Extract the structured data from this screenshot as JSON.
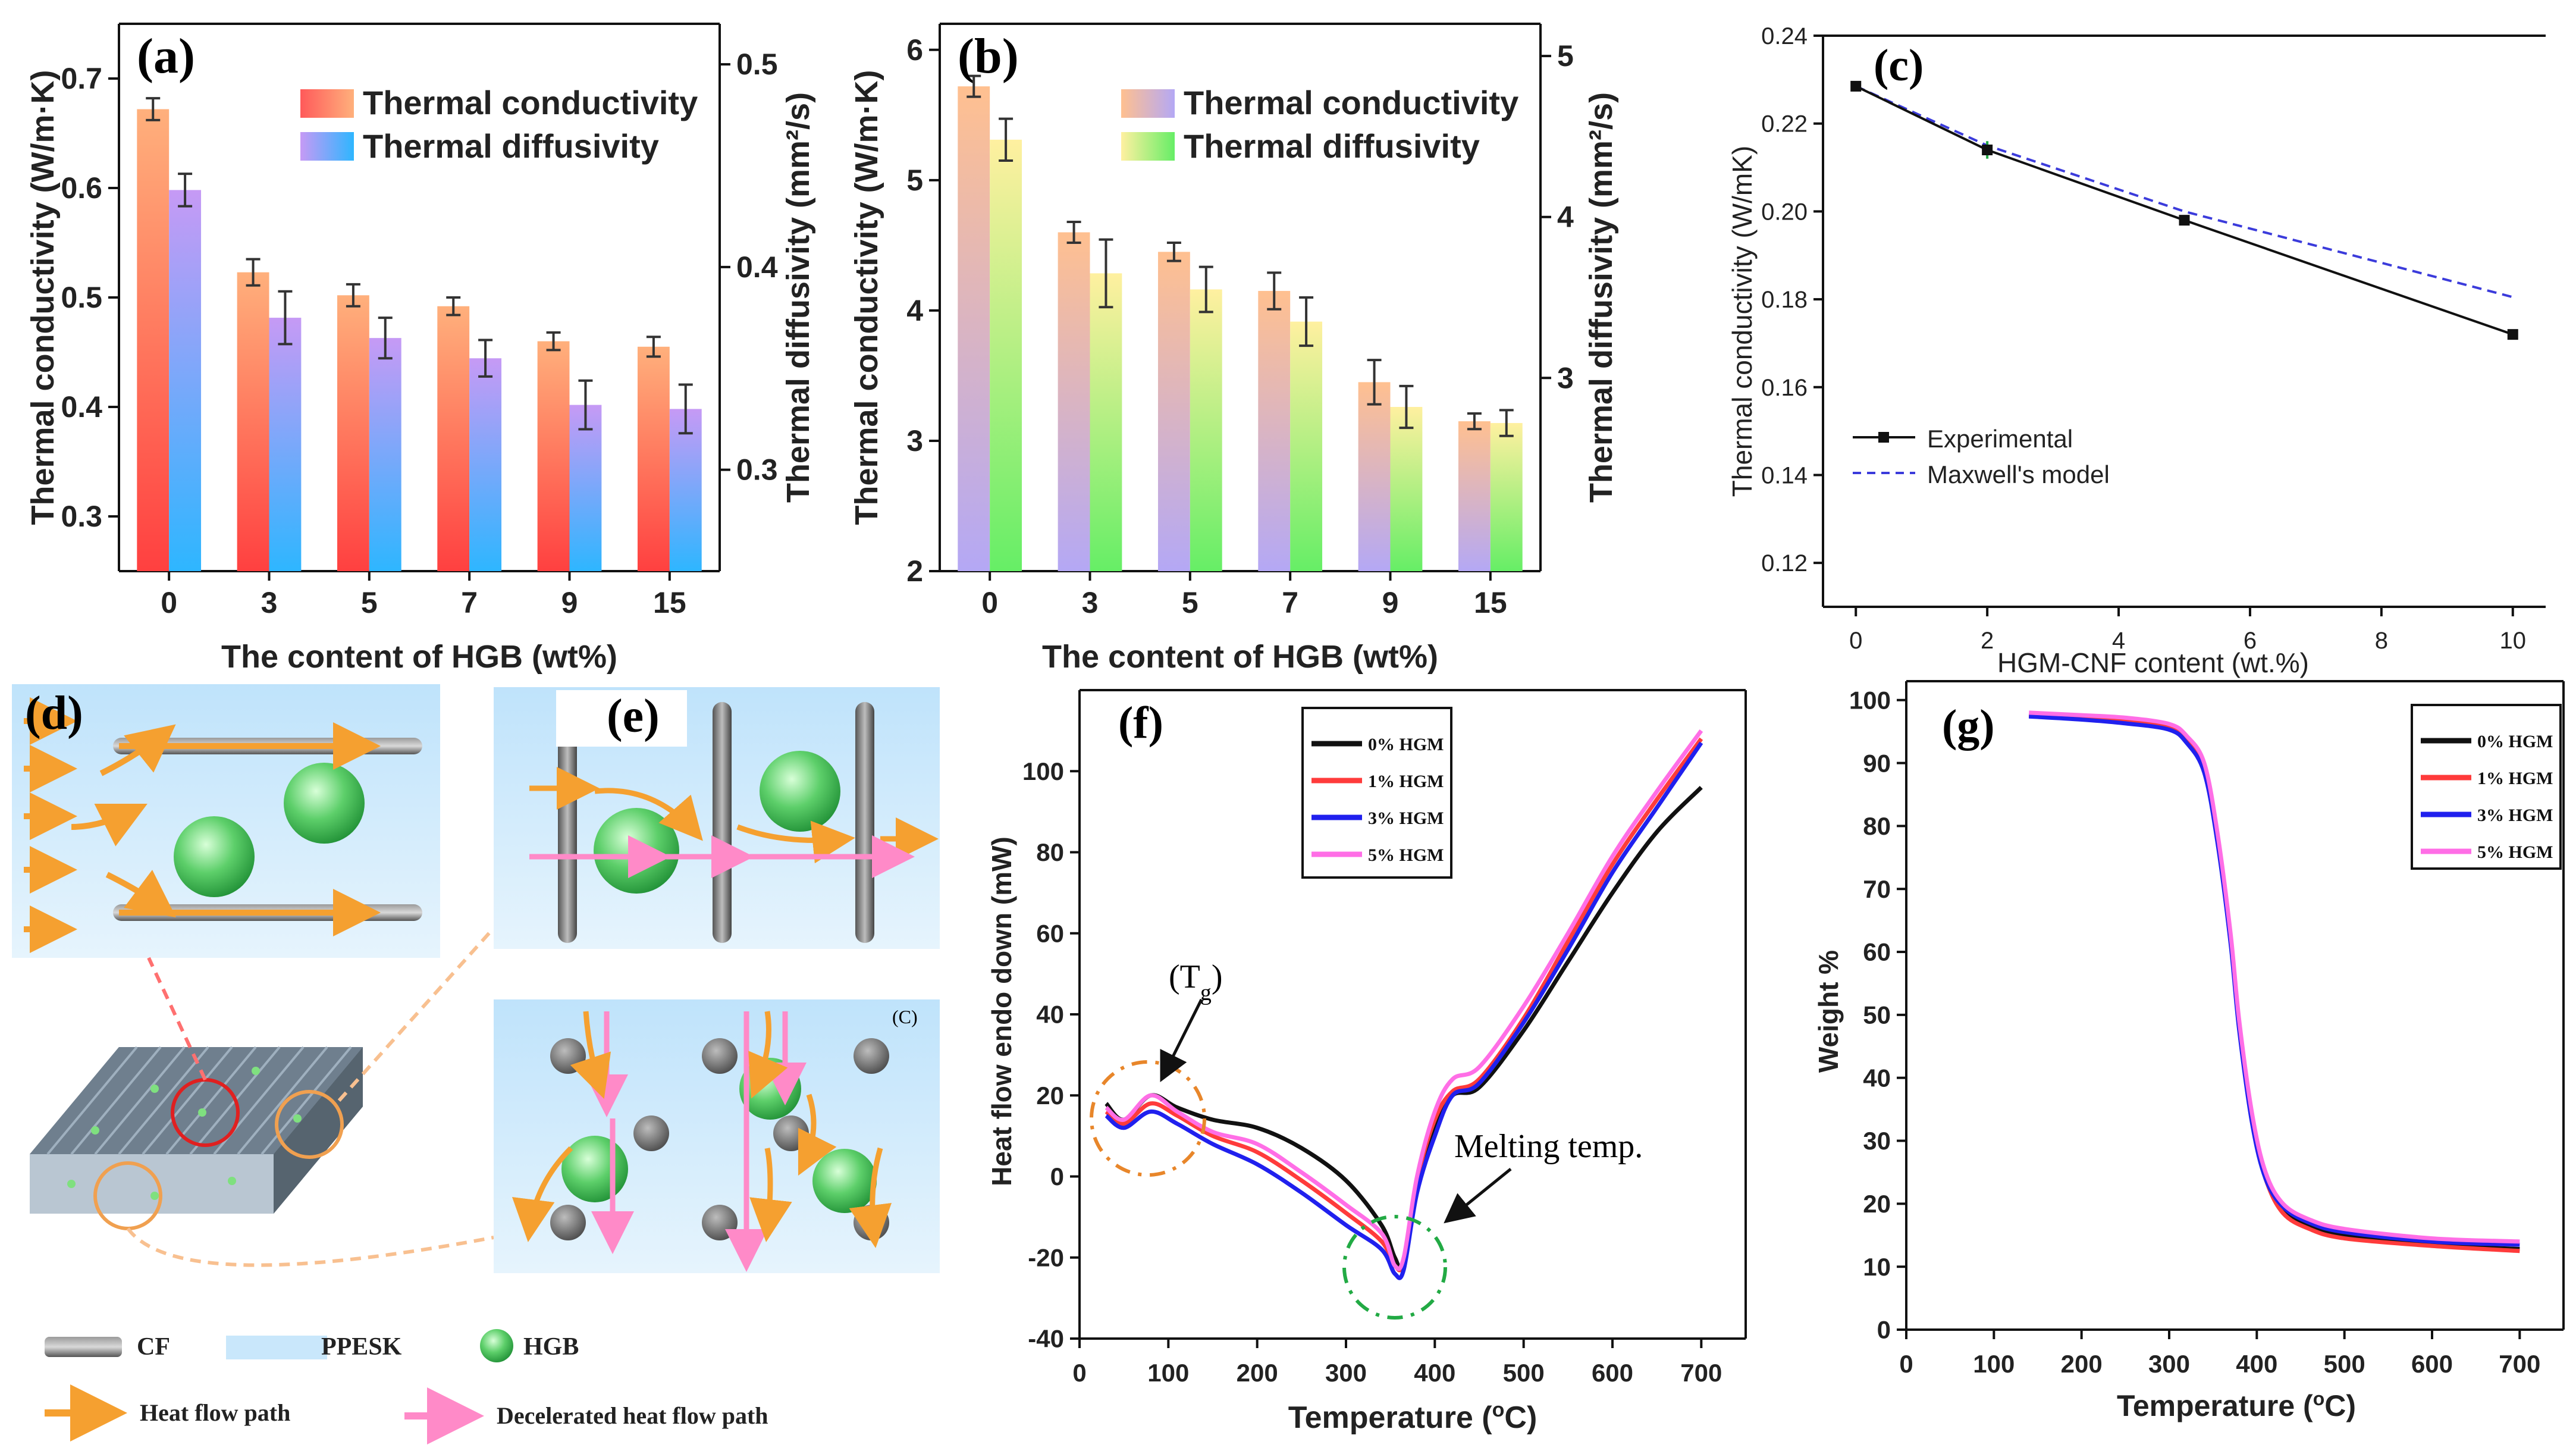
{
  "colors": {
    "red": "#ff3b3b",
    "orange": "#ffa07a",
    "blue": "#3aaeff",
    "violet": "#c49cf5",
    "green": "#7cf07c",
    "black": "#111111",
    "dashblue": "#3b3bdb",
    "pink": "#ff6ee6",
    "water": "#c9e7fb"
  },
  "legend_c": {
    "experimental": "Experimental",
    "maxwell": "Maxwell's model"
  },
  "legend_fg": [
    "0% HGM",
    "1% HGM",
    "3% HGM",
    "5% HGM"
  ],
  "annotations": {
    "tg": "(T",
    "tg_sub": "g",
    "tg_close": ")",
    "melt": "Melting temp."
  },
  "schematic": {
    "label_d": "(d)",
    "label_e": "(e)",
    "label_c_small": "(C)",
    "legend": {
      "cf": "CF",
      "ppesk": "PPESK",
      "hgb": "HGB",
      "heat": "Heat flow path",
      "decel": "Decelerated heat flow path"
    }
  },
  "chart_data": [
    {
      "panel": "(a)",
      "type": "bar",
      "categories": [
        "0",
        "3",
        "5",
        "7",
        "9",
        "15"
      ],
      "xlabel": "The content of HGB (wt%)",
      "ylabel": "Thermal conductivity (W/m·K)",
      "ylabel_right": "Thermal diffusivity (mm²/s)",
      "ylim": [
        0.25,
        0.75
      ],
      "yticks": [
        "0.3",
        "0.4",
        "0.5",
        "0.6",
        "0.7"
      ],
      "ylim_right": [
        0.25,
        0.52
      ],
      "yticks_right": [
        "0.3",
        "0.4",
        "0.5"
      ],
      "series": [
        {
          "name": "Thermal conductivity",
          "axis": "left",
          "values": [
            0.672,
            0.523,
            0.502,
            0.492,
            0.46,
            0.455
          ],
          "errors": [
            0.01,
            0.012,
            0.01,
            0.008,
            0.008,
            0.009
          ]
        },
        {
          "name": "Thermal diffusivity",
          "axis": "right",
          "values": [
            0.438,
            0.375,
            0.365,
            0.355,
            0.332,
            0.33
          ],
          "errors": [
            0.008,
            0.013,
            0.01,
            0.009,
            0.012,
            0.012
          ]
        }
      ]
    },
    {
      "panel": "(b)",
      "type": "bar",
      "categories": [
        "0",
        "3",
        "5",
        "7",
        "9",
        "15"
      ],
      "xlabel": "The content of HGB (wt%)",
      "ylabel": "Thermal conductivity (W/m·K)",
      "ylabel_right": "Thermal diffusivity (mm²/s)",
      "ylim": [
        2,
        6.2
      ],
      "yticks": [
        "2",
        "3",
        "4",
        "5",
        "6"
      ],
      "ylim_right": [
        1.8,
        5.2
      ],
      "yticks_right": [
        "3",
        "4",
        "5"
      ],
      "series": [
        {
          "name": "Thermal conductivity",
          "axis": "left",
          "values": [
            5.72,
            4.6,
            4.45,
            4.15,
            3.45,
            3.15
          ],
          "errors": [
            0.08,
            0.08,
            0.07,
            0.14,
            0.17,
            0.06
          ]
        },
        {
          "name": "Thermal diffusivity",
          "axis": "right",
          "values": [
            4.48,
            3.65,
            3.55,
            3.35,
            2.82,
            2.72
          ],
          "errors": [
            0.13,
            0.21,
            0.14,
            0.15,
            0.13,
            0.08
          ]
        }
      ]
    },
    {
      "panel": "(c)",
      "type": "line",
      "xlabel": "HGM-CNF content (wt.%)",
      "ylabel": "Thermal conductivity (W/mK)",
      "xlim": [
        -0.5,
        10.5
      ],
      "xticks": [
        "0",
        "2",
        "4",
        "6",
        "8",
        "10"
      ],
      "ylim": [
        0.11,
        0.24
      ],
      "yticks": [
        "0.12",
        "0.14",
        "0.16",
        "0.18",
        "0.20",
        "0.22",
        "0.24"
      ],
      "series": [
        {
          "name": "Experimental",
          "x": [
            0,
            2,
            5,
            10
          ],
          "y": [
            0.2285,
            0.214,
            0.198,
            0.172
          ],
          "errors": [
            0.001,
            0.002,
            0.001,
            0.001
          ]
        },
        {
          "name": "Maxwell's model",
          "x": [
            0,
            2,
            5,
            10
          ],
          "y": [
            0.2285,
            0.215,
            0.2,
            0.1805
          ]
        }
      ]
    },
    {
      "panel": "(f)",
      "type": "line",
      "xlabel": "Temperature (°C)",
      "ylabel": "Heat flow endo down (mW)",
      "xlim": [
        0,
        750
      ],
      "xticks": [
        "0",
        "100",
        "200",
        "300",
        "400",
        "500",
        "600",
        "700"
      ],
      "ylim": [
        -40,
        120
      ],
      "yticks": [
        "-40",
        "-20",
        "0",
        "20",
        "40",
        "60",
        "80",
        "100"
      ],
      "series": [
        {
          "name": "0% HGM",
          "x": [
            30,
            50,
            80,
            110,
            150,
            200,
            250,
            300,
            340,
            355,
            365,
            380,
            400,
            420,
            450,
            500,
            550,
            600,
            650,
            700
          ],
          "y": [
            18,
            14,
            20,
            17,
            14,
            12,
            7,
            -1,
            -12,
            -20,
            -22,
            -3,
            12,
            20,
            22,
            36,
            53,
            70,
            85,
            96
          ]
        },
        {
          "name": "1% HGM",
          "x": [
            30,
            50,
            80,
            110,
            150,
            200,
            250,
            300,
            340,
            355,
            365,
            380,
            400,
            420,
            450,
            500,
            550,
            600,
            650,
            700
          ],
          "y": [
            16,
            13,
            18,
            15,
            10,
            6,
            -1,
            -9,
            -16,
            -22,
            -21,
            -1,
            14,
            21,
            24,
            39,
            58,
            77,
            93,
            108
          ]
        },
        {
          "name": "3% HGM",
          "x": [
            30,
            50,
            80,
            110,
            150,
            200,
            250,
            300,
            340,
            355,
            365,
            380,
            400,
            420,
            450,
            500,
            550,
            600,
            650,
            700
          ],
          "y": [
            15,
            12,
            16,
            13,
            8,
            3,
            -4,
            -12,
            -18,
            -24,
            -23,
            -4,
            10,
            20,
            23,
            38,
            56,
            75,
            91,
            107
          ]
        },
        {
          "name": "5% HGM",
          "x": [
            30,
            50,
            80,
            110,
            150,
            200,
            250,
            300,
            340,
            355,
            365,
            380,
            400,
            420,
            450,
            500,
            550,
            600,
            650,
            700
          ],
          "y": [
            17,
            14,
            20,
            16,
            11,
            8,
            1,
            -7,
            -14,
            -22,
            -20,
            0,
            16,
            24,
            27,
            42,
            60,
            79,
            95,
            110
          ]
        }
      ]
    },
    {
      "panel": "(g)",
      "type": "line",
      "xlabel": "Temperature (°C)",
      "ylabel": "Weight %",
      "xlim": [
        0,
        750
      ],
      "xticks": [
        "0",
        "100",
        "200",
        "300",
        "400",
        "500",
        "600",
        "700"
      ],
      "ylim": [
        0,
        103
      ],
      "yticks": [
        "0",
        "10",
        "20",
        "30",
        "40",
        "50",
        "60",
        "70",
        "80",
        "90",
        "100"
      ],
      "series": [
        {
          "name": "0% HGM",
          "x": [
            140,
            200,
            250,
            300,
            320,
            340,
            355,
            370,
            380,
            395,
            410,
            430,
            460,
            500,
            600,
            700
          ],
          "y": [
            97.5,
            97,
            96.5,
            95.5,
            93.5,
            89,
            78,
            62,
            48,
            33,
            24,
            19,
            16.5,
            15,
            13.5,
            12.8
          ]
        },
        {
          "name": "1% HGM",
          "x": [
            140,
            200,
            250,
            300,
            320,
            340,
            355,
            370,
            380,
            395,
            410,
            430,
            460,
            500,
            600,
            700
          ],
          "y": [
            97.6,
            97.1,
            96.6,
            95.6,
            93.8,
            89.5,
            78.5,
            62.5,
            48.5,
            33,
            24,
            18.5,
            16,
            14.5,
            13.3,
            12.5
          ]
        },
        {
          "name": "3% HGM",
          "x": [
            140,
            200,
            250,
            300,
            320,
            340,
            355,
            370,
            380,
            395,
            410,
            430,
            460,
            500,
            600,
            700
          ],
          "y": [
            97.4,
            96.9,
            96.3,
            95.3,
            93.2,
            88.5,
            77.5,
            61.5,
            47.5,
            32.5,
            24,
            19.5,
            17,
            15.5,
            14,
            13.5
          ]
        },
        {
          "name": "5% HGM",
          "x": [
            140,
            200,
            250,
            300,
            320,
            340,
            355,
            370,
            380,
            395,
            410,
            430,
            460,
            500,
            600,
            700
          ],
          "y": [
            98,
            97.6,
            97.2,
            96.2,
            94.3,
            90,
            79,
            63,
            49,
            34,
            25,
            20,
            17.5,
            16,
            14.5,
            14
          ]
        }
      ]
    }
  ]
}
